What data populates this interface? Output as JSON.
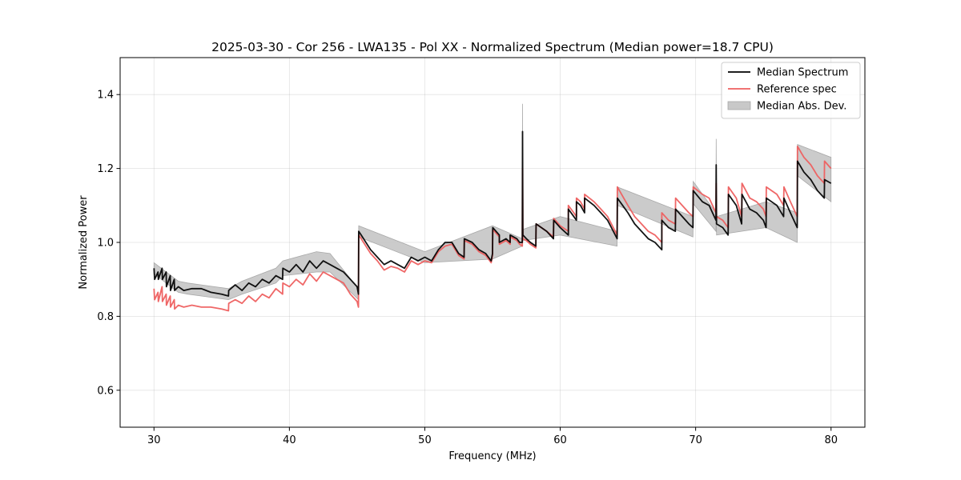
{
  "chart_data": {
    "type": "line",
    "title": "2025-03-30 - Cor 256 - LWA135 - Pol XX - Normalized Spectrum (Median power=18.7 CPU)",
    "xlabel": "Frequency (MHz)",
    "ylabel": "Normalized Power",
    "xlim": [
      27.5,
      82.5
    ],
    "ylim": [
      0.5,
      1.5
    ],
    "xticks": [
      30,
      40,
      50,
      60,
      70,
      80
    ],
    "xtick_labels": [
      "30",
      "40",
      "50",
      "60",
      "70",
      "80"
    ],
    "yticks": [
      0.6,
      0.8,
      1.0,
      1.2,
      1.4
    ],
    "ytick_labels": [
      "0.6",
      "0.8",
      "1.0",
      "1.2",
      "1.4"
    ],
    "grid": true,
    "legend_position": "top-right",
    "legend": [
      {
        "label": "Median Spectrum",
        "kind": "line",
        "color": "#000000"
      },
      {
        "label": "Reference spec",
        "kind": "line",
        "color": "#ee5f5f"
      },
      {
        "label": "Median Abs. Dev.",
        "kind": "fill",
        "color": "#c8c8c8"
      }
    ],
    "series": [
      {
        "name": "Median Spectrum",
        "color": "#000000",
        "x": [
          30.0,
          30.05,
          30.3,
          30.32,
          30.6,
          30.62,
          30.9,
          30.92,
          31.2,
          31.22,
          31.5,
          31.52,
          31.8,
          32.2,
          32.8,
          33.5,
          34.2,
          35.0,
          35.5,
          35.52,
          36.0,
          36.5,
          37.0,
          37.5,
          38.0,
          38.5,
          39.0,
          39.5,
          39.52,
          40.0,
          40.5,
          41.0,
          41.5,
          42.0,
          42.5,
          43.0,
          43.5,
          44.0,
          44.5,
          45.0,
          45.1,
          45.12,
          45.3,
          46.0,
          46.5,
          47.0,
          47.5,
          48.0,
          48.5,
          49.0,
          49.5,
          50.0,
          50.5,
          51.0,
          51.5,
          52.0,
          52.5,
          52.9,
          52.92,
          53.5,
          54.0,
          54.5,
          54.9,
          55.0,
          55.02,
          55.5,
          55.5,
          56.0,
          56.3,
          56.3,
          56.8,
          57.0,
          57.2,
          57.22,
          57.24,
          57.5,
          57.8,
          58.2,
          58.22,
          59.0,
          59.5,
          59.52,
          60.0,
          60.6,
          60.6,
          61.0,
          61.2,
          61.2,
          61.5,
          61.8,
          61.8,
          62.5,
          63.0,
          63.5,
          64.2,
          64.22,
          65.0,
          65.5,
          66.0,
          66.5,
          67.0,
          67.5,
          67.5,
          68.0,
          68.5,
          68.52,
          69.5,
          69.8,
          69.82,
          70.5,
          71.0,
          71.5,
          71.52,
          71.54,
          72.0,
          72.4,
          72.42,
          73.0,
          73.4,
          73.42,
          74.0,
          74.5,
          75.0,
          75.2,
          75.22,
          76.0,
          76.5,
          76.52,
          77.0,
          77.5,
          77.52,
          78.0,
          78.5,
          79.0,
          79.5,
          79.52,
          80.0
        ],
        "y": [
          0.93,
          0.9,
          0.92,
          0.9,
          0.93,
          0.9,
          0.92,
          0.88,
          0.91,
          0.87,
          0.9,
          0.87,
          0.88,
          0.87,
          0.875,
          0.875,
          0.865,
          0.86,
          0.855,
          0.87,
          0.885,
          0.87,
          0.89,
          0.88,
          0.9,
          0.89,
          0.91,
          0.9,
          0.93,
          0.92,
          0.94,
          0.92,
          0.95,
          0.93,
          0.95,
          0.94,
          0.93,
          0.92,
          0.9,
          0.88,
          0.86,
          1.03,
          1.02,
          0.98,
          0.96,
          0.94,
          0.95,
          0.94,
          0.93,
          0.96,
          0.95,
          0.96,
          0.95,
          0.98,
          1.0,
          1.0,
          0.97,
          0.96,
          1.01,
          1.0,
          0.98,
          0.97,
          0.95,
          0.97,
          1.04,
          1.02,
          1.0,
          1.01,
          1.0,
          1.02,
          1.01,
          1.0,
          1.0,
          1.3,
          1.02,
          1.01,
          1.0,
          0.99,
          1.05,
          1.03,
          1.01,
          1.06,
          1.04,
          1.02,
          1.09,
          1.07,
          1.06,
          1.11,
          1.1,
          1.08,
          1.12,
          1.1,
          1.08,
          1.06,
          1.01,
          1.12,
          1.08,
          1.05,
          1.03,
          1.01,
          1.0,
          0.98,
          1.06,
          1.04,
          1.03,
          1.09,
          1.05,
          1.04,
          1.14,
          1.11,
          1.1,
          1.06,
          1.21,
          1.05,
          1.04,
          1.02,
          1.13,
          1.1,
          1.05,
          1.13,
          1.09,
          1.08,
          1.06,
          1.04,
          1.12,
          1.1,
          1.07,
          1.12,
          1.08,
          1.04,
          1.22,
          1.19,
          1.17,
          1.14,
          1.12,
          1.17,
          1.16
        ]
      },
      {
        "name": "Reference spec",
        "color": "#ee5f5f",
        "x": [
          30.0,
          30.05,
          30.3,
          30.32,
          30.6,
          30.62,
          30.9,
          30.92,
          31.2,
          31.22,
          31.5,
          31.52,
          31.8,
          32.2,
          32.8,
          33.5,
          34.2,
          35.0,
          35.5,
          35.52,
          36.0,
          36.5,
          37.0,
          37.5,
          38.0,
          38.5,
          39.0,
          39.5,
          39.52,
          40.0,
          40.5,
          41.0,
          41.5,
          42.0,
          42.5,
          43.0,
          43.5,
          44.0,
          44.5,
          45.0,
          45.1,
          45.12,
          45.3,
          46.0,
          46.5,
          47.0,
          47.5,
          48.0,
          48.5,
          49.0,
          49.5,
          50.0,
          50.5,
          51.0,
          51.5,
          52.0,
          52.5,
          52.9,
          52.92,
          53.5,
          54.0,
          54.5,
          54.9,
          55.0,
          55.02,
          55.5,
          55.5,
          56.0,
          56.3,
          56.3,
          56.8,
          57.0,
          57.2,
          57.22,
          57.24,
          57.5,
          57.8,
          58.2,
          58.22,
          59.0,
          59.5,
          59.52,
          60.0,
          60.6,
          60.6,
          61.0,
          61.2,
          61.2,
          61.5,
          61.8,
          61.8,
          62.5,
          63.0,
          63.5,
          64.2,
          64.22,
          65.0,
          65.5,
          66.0,
          66.5,
          67.0,
          67.5,
          67.5,
          68.0,
          68.5,
          68.52,
          69.5,
          69.8,
          69.82,
          70.5,
          71.0,
          71.5,
          71.52,
          71.54,
          72.0,
          72.4,
          72.42,
          73.0,
          73.4,
          73.42,
          74.0,
          74.5,
          75.0,
          75.2,
          75.22,
          76.0,
          76.5,
          76.52,
          77.0,
          77.5,
          77.52,
          78.0,
          78.5,
          79.0,
          79.5,
          79.52,
          80.0
        ],
        "y": [
          0.875,
          0.845,
          0.865,
          0.84,
          0.88,
          0.84,
          0.86,
          0.83,
          0.855,
          0.825,
          0.845,
          0.82,
          0.83,
          0.825,
          0.83,
          0.825,
          0.825,
          0.82,
          0.815,
          0.835,
          0.845,
          0.835,
          0.855,
          0.84,
          0.86,
          0.85,
          0.875,
          0.86,
          0.89,
          0.88,
          0.9,
          0.885,
          0.915,
          0.895,
          0.92,
          0.91,
          0.9,
          0.89,
          0.86,
          0.84,
          0.825,
          1.02,
          1.01,
          0.97,
          0.95,
          0.925,
          0.935,
          0.93,
          0.92,
          0.95,
          0.94,
          0.95,
          0.945,
          0.975,
          0.99,
          0.995,
          0.965,
          0.955,
          1.005,
          0.995,
          0.975,
          0.965,
          0.945,
          0.965,
          1.035,
          1.015,
          0.995,
          1.005,
          0.995,
          1.015,
          1.005,
          0.995,
          0.99,
          1.2,
          1.01,
          1.005,
          0.995,
          0.985,
          1.05,
          1.03,
          1.015,
          1.065,
          1.045,
          1.03,
          1.1,
          1.08,
          1.07,
          1.12,
          1.11,
          1.09,
          1.13,
          1.11,
          1.09,
          1.07,
          1.02,
          1.15,
          1.1,
          1.07,
          1.05,
          1.03,
          1.02,
          1.0,
          1.08,
          1.06,
          1.05,
          1.12,
          1.08,
          1.07,
          1.15,
          1.13,
          1.12,
          1.08,
          1.16,
          1.07,
          1.06,
          1.04,
          1.15,
          1.12,
          1.07,
          1.16,
          1.12,
          1.11,
          1.09,
          1.07,
          1.15,
          1.13,
          1.1,
          1.15,
          1.11,
          1.07,
          1.26,
          1.23,
          1.21,
          1.18,
          1.16,
          1.22,
          1.2
        ]
      }
    ],
    "band": {
      "name": "Median Abs. Dev.",
      "color": "#c8c8c8",
      "x": [
        30.0,
        31.8,
        32.5,
        35.5,
        36.5,
        39.0,
        39.52,
        42.0,
        43.0,
        45.1,
        45.12,
        50.0,
        55.0,
        57.2,
        57.22,
        57.24,
        60.0,
        64.2,
        64.22,
        69.8,
        69.82,
        71.5,
        71.52,
        71.54,
        75.2,
        77.5,
        77.52,
        80.0
      ],
      "lower": [
        0.915,
        0.865,
        0.86,
        0.845,
        0.86,
        0.89,
        0.91,
        0.92,
        0.92,
        0.845,
        1.015,
        0.945,
        0.955,
        0.99,
        1.2,
        1.005,
        1.02,
        0.99,
        1.1,
        1.015,
        1.105,
        1.03,
        1.16,
        1.02,
        1.04,
        1.0,
        1.18,
        1.11
      ],
      "upper": [
        0.945,
        0.895,
        0.89,
        0.875,
        0.895,
        0.93,
        0.95,
        0.975,
        0.97,
        0.875,
        1.045,
        0.975,
        1.045,
        1.01,
        1.375,
        1.035,
        1.07,
        1.03,
        1.15,
        1.07,
        1.165,
        1.08,
        1.28,
        1.07,
        1.11,
        1.08,
        1.265,
        1.23
      ]
    }
  }
}
